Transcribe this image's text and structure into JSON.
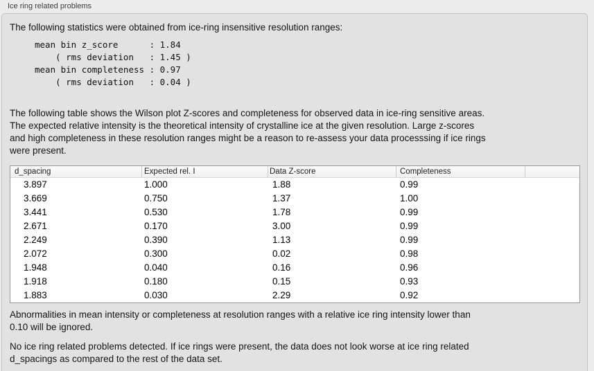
{
  "section": {
    "title": "Ice ring related problems"
  },
  "texts": {
    "intro": "The following statistics were obtained from ice-ring insensitive resolution ranges:",
    "stats_block": "mean bin z_score      : 1.84\n    ( rms deviation   : 1.45 )\nmean bin completeness : 0.97\n    ( rms deviation   : 0.04 )",
    "description": "The following table shows the Wilson plot Z-scores and completeness for observed data in ice-ring sensitive areas.\nThe expected relative intensity is the theoretical intensity of crystalline ice at the given resolution. Large z-scores\nand high completeness in these resolution ranges might be a reason to re-assess your data processsing if ice rings\nwere present.",
    "footnote": "Abnormalities in mean intensity or completeness at resolution ranges with a relative ice ring intensity lower than\n0.10 will be ignored.",
    "conclusion": "No ice ring related problems detected. If ice rings were present, the data does not look worse at ice ring related\nd_spacings as compared to the rest of the data set."
  },
  "stats_values": {
    "mean_bin_z_score": "1.84",
    "z_score_rms_deviation": "1.45",
    "mean_bin_completeness": "0.97",
    "completeness_rms_deviation": "0.04"
  },
  "table": {
    "columns": [
      "d_spacing",
      "Expected rel. I",
      "Data Z-score",
      "Completeness"
    ],
    "rows": [
      [
        "3.897",
        "1.000",
        "1.88",
        "0.99"
      ],
      [
        "3.669",
        "0.750",
        "1.37",
        "1.00"
      ],
      [
        "3.441",
        "0.530",
        "1.78",
        "0.99"
      ],
      [
        "2.671",
        "0.170",
        "3.00",
        "0.99"
      ],
      [
        "2.249",
        "0.390",
        "1.13",
        "0.99"
      ],
      [
        "2.072",
        "0.300",
        "0.02",
        "0.98"
      ],
      [
        "1.948",
        "0.040",
        "0.16",
        "0.96"
      ],
      [
        "1.918",
        "0.180",
        "0.15",
        "0.93"
      ],
      [
        "1.883",
        "0.030",
        "2.29",
        "0.92"
      ]
    ]
  },
  "colors": {
    "outer_background": "#ececec",
    "panel_background": "#e2e2e2",
    "panel_border": "#c2c2c2",
    "table_background": "#ffffff",
    "table_border": "#979797",
    "header_background": "#f5f5f5",
    "text": "#141414"
  }
}
